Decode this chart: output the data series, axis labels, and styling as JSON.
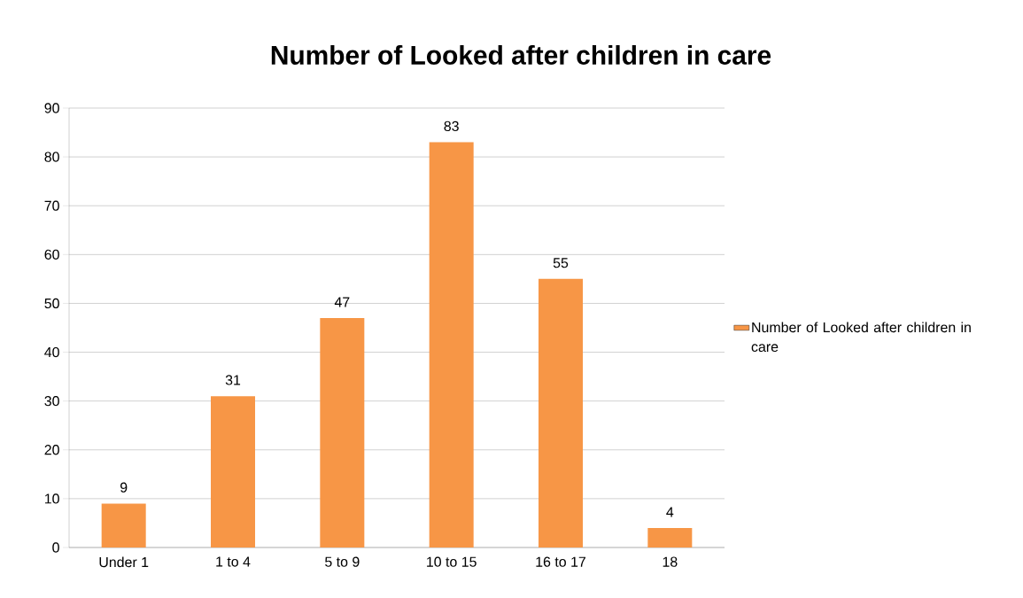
{
  "chart_data": {
    "type": "bar",
    "title": "Number of Looked after children in care",
    "categories": [
      "Under 1",
      "1 to 4",
      "5 to 9",
      "10 to 15",
      "16 to 17",
      "18"
    ],
    "series": [
      {
        "name": "Number of Looked after children in care",
        "color": "#f79646",
        "values": [
          9,
          31,
          47,
          83,
          55,
          4
        ]
      }
    ],
    "ylim": [
      0,
      90
    ],
    "yticks": [
      0,
      10,
      20,
      30,
      40,
      50,
      60,
      70,
      80,
      90
    ],
    "grid": "y",
    "legend": "right",
    "data_labels": true
  }
}
